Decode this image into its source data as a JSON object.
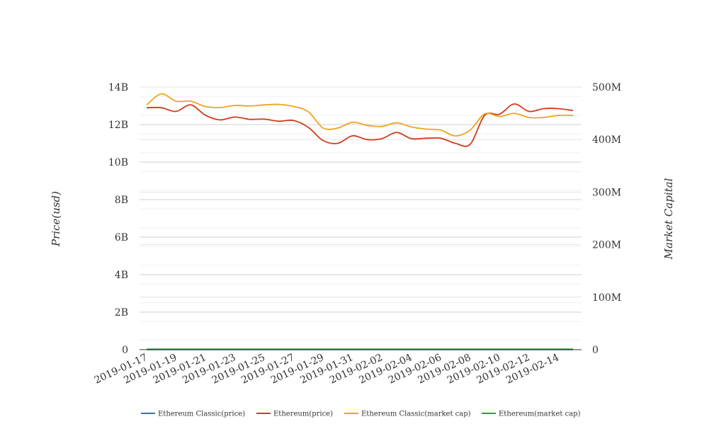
{
  "chart_data": {
    "type": "line",
    "ylabel_left": "Price(usd)",
    "ylabel_right": "Market Capital",
    "y_left": {
      "ylim": [
        0,
        14000000000
      ],
      "ticks": [
        "0",
        "2B",
        "4B",
        "6B",
        "8B",
        "10B",
        "12B",
        "14B"
      ]
    },
    "y_right": {
      "ylim": [
        0,
        500000000
      ],
      "ticks": [
        "0",
        "100M",
        "200M",
        "300M",
        "400M",
        "500M"
      ]
    },
    "x_tick_labels": [
      "2019-01-17",
      "2019-01-19",
      "2019-01-21",
      "2019-01-23",
      "2019-01-25",
      "2019-01-27",
      "2019-01-29",
      "2019-01-31",
      "2019-02-02",
      "2019-02-04",
      "2019-02-06",
      "2019-02-08",
      "2019-02-10",
      "2019-02-12",
      "2019-02-14"
    ],
    "x": [
      "2019-01-17",
      "2019-01-18",
      "2019-01-19",
      "2019-01-20",
      "2019-01-21",
      "2019-01-22",
      "2019-01-23",
      "2019-01-24",
      "2019-01-25",
      "2019-01-26",
      "2019-01-27",
      "2019-01-28",
      "2019-01-29",
      "2019-01-30",
      "2019-01-31",
      "2019-02-01",
      "2019-02-02",
      "2019-02-03",
      "2019-02-04",
      "2019-02-05",
      "2019-02-06",
      "2019-02-07",
      "2019-02-08",
      "2019-02-09",
      "2019-02-10",
      "2019-02-11",
      "2019-02-12",
      "2019-02-13",
      "2019-02-14",
      "2019-02-15"
    ],
    "grid": true,
    "legend_position": "bottom",
    "series": [
      {
        "name": "Ethereum Classic(price)",
        "axis": "left",
        "color": "#3a6fb5",
        "values": [
          4.5,
          4.6,
          4.4,
          4.4,
          4.2,
          4.2,
          4.3,
          4.2,
          4.3,
          4.3,
          4.2,
          4.1,
          3.8,
          3.7,
          3.9,
          3.8,
          3.8,
          3.9,
          3.8,
          3.8,
          3.8,
          3.7,
          3.6,
          4.2,
          4.3,
          4.4,
          4.2,
          4.3,
          4.3,
          4.3
        ]
      },
      {
        "name": "Ethereum(price)",
        "axis": "left",
        "color": "#d03c1b",
        "values": [
          12900000000,
          12900000000,
          12700000000,
          13050000000,
          12500000000,
          12250000000,
          12400000000,
          12280000000,
          12290000000,
          12180000000,
          12220000000,
          11850000000,
          11150000000,
          11000000000,
          11400000000,
          11200000000,
          11250000000,
          11580000000,
          11250000000,
          11270000000,
          11270000000,
          11000000000,
          10950000000,
          12500000000,
          12550000000,
          13100000000,
          12700000000,
          12850000000,
          12850000000,
          12750000000
        ]
      },
      {
        "name": "Ethereum Classic(market cap)",
        "axis": "right",
        "color": "#f0a31a",
        "values": [
          466000000,
          487000000,
          473000000,
          473000000,
          463000000,
          461000000,
          465000000,
          464000000,
          466000000,
          467000000,
          463000000,
          453000000,
          422000000,
          422000000,
          433000000,
          427000000,
          425000000,
          432000000,
          424000000,
          420000000,
          418000000,
          407000000,
          418000000,
          449000000,
          444000000,
          450000000,
          442000000,
          442000000,
          446000000,
          446000000
        ]
      },
      {
        "name": "Ethereum(market cap)",
        "axis": "right",
        "color": "#2aa02a",
        "values": [
          900000,
          900000,
          900000,
          900000,
          900000,
          900000,
          900000,
          900000,
          900000,
          900000,
          900000,
          900000,
          900000,
          900000,
          900000,
          900000,
          900000,
          900000,
          900000,
          900000,
          900000,
          900000,
          900000,
          900000,
          900000,
          900000,
          900000,
          900000,
          900000,
          900000
        ]
      }
    ]
  }
}
